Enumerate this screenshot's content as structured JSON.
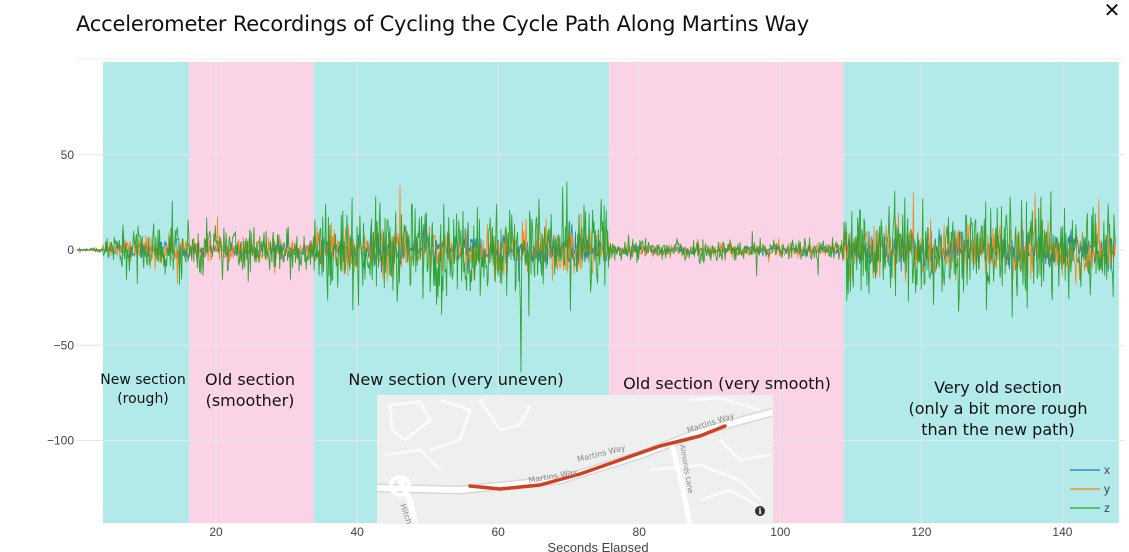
{
  "title": "Accelerometer Recordings of Cycling the Cycle Path Along Martins Way",
  "close_icon": "close-icon",
  "chart_data": {
    "type": "line",
    "xlabel": "Seconds Elapsed",
    "ylabel": "",
    "xlim": [
      0,
      148
    ],
    "ylim": [
      -145,
      97
    ],
    "x_ticks": [
      20,
      40,
      60,
      80,
      100,
      120,
      140
    ],
    "y_ticks": [
      50,
      0,
      -50,
      -100
    ],
    "y_tick_labels": [
      "50",
      "0",
      "−50",
      "−100"
    ],
    "grid": true,
    "legend_position": "bottom-right",
    "series": [
      {
        "name": "x",
        "color": "#1f77b4"
      },
      {
        "name": "y",
        "color": "#ff7f0e"
      },
      {
        "name": "z",
        "color": "#2ca02c"
      }
    ],
    "regions": [
      {
        "x0": 3.8,
        "x1": 16.2,
        "color": "#b2eaea",
        "label_lines": [
          "New section",
          "(rough)"
        ]
      },
      {
        "x0": 16.2,
        "x1": 33.9,
        "color": "#fbd3e7",
        "label_lines": [
          "Old section",
          "(smoother)"
        ]
      },
      {
        "x0": 33.9,
        "x1": 75.7,
        "color": "#b2eaea",
        "label_lines": [
          "New section (very uneven)"
        ]
      },
      {
        "x0": 75.7,
        "x1": 109.0,
        "color": "#fbd3e7",
        "label_lines": [
          "Old section (very smooth)"
        ]
      },
      {
        "x0": 109.0,
        "x1": 148,
        "color": "#b2eaea",
        "label_lines": [
          "Very old section",
          "(only a bit more rough",
          "than the new path)"
        ]
      }
    ],
    "amplitude_envelope": [
      {
        "x0": 0,
        "x1": 3.8,
        "amp": 2
      },
      {
        "x0": 3.8,
        "x1": 16.2,
        "amp": 22
      },
      {
        "x0": 16.2,
        "x1": 33.9,
        "amp": 18
      },
      {
        "x0": 33.9,
        "x1": 75.7,
        "amp": 35
      },
      {
        "x0": 75.7,
        "x1": 109.0,
        "amp": 9
      },
      {
        "x0": 109.0,
        "x1": 148,
        "amp": 38
      }
    ]
  },
  "map_inset": {
    "road_labels": [
      "Martins Way",
      "Martins Way",
      "Martins Way",
      "Hitchin Road",
      "Almonds Lane"
    ],
    "info_icon": "info-icon"
  }
}
